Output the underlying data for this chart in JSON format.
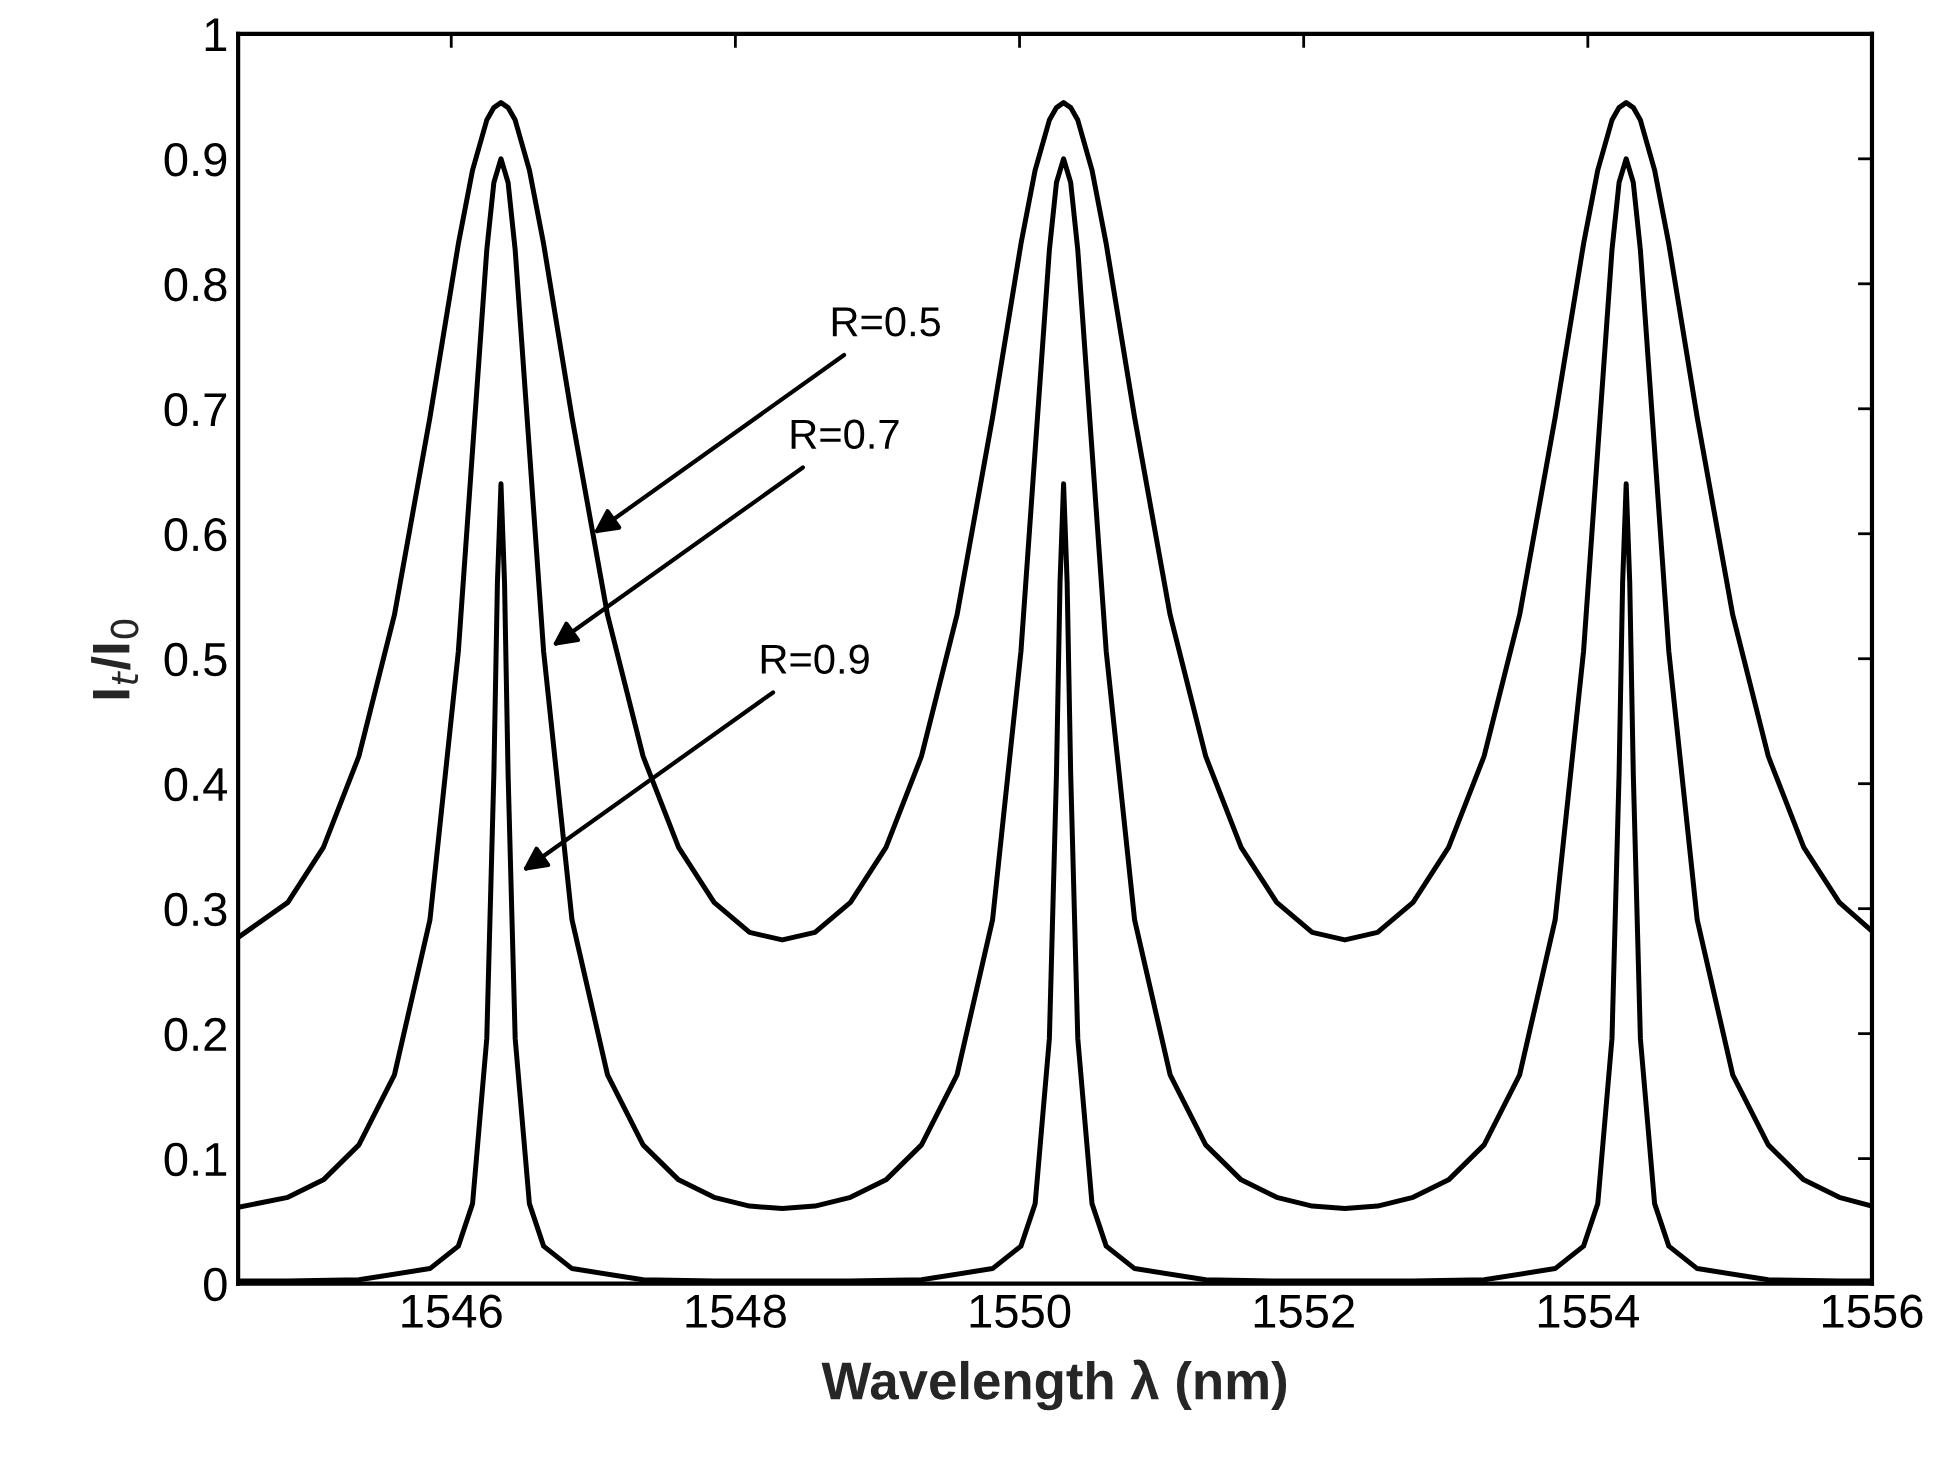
{
  "chart_data": {
    "type": "line",
    "xlabel": "Wavelength λ (nm)",
    "ylabel": "I$_{t}$/I$_{0}$",
    "xlim": [
      1544.5,
      1556
    ],
    "xticks": [
      1546,
      1548,
      1550,
      1552,
      1554,
      1556
    ],
    "ylim": [
      0,
      1
    ],
    "yticks": [
      0,
      0.1,
      0.2,
      0.3,
      0.4,
      0.5,
      0.6,
      0.7,
      0.8,
      0.9,
      1
    ],
    "grid": false,
    "marker": "none",
    "line_style": "solid",
    "series": [
      {
        "color": "#000000",
        "x": [
          1544.5,
          1544.85,
          1545.1,
          1545.35,
          1545.6,
          1545.85,
          1546.05,
          1546.15,
          1546.25,
          1546.3,
          1546.35,
          1546.4,
          1546.45,
          1546.55,
          1546.65,
          1546.85,
          1547.1,
          1547.35,
          1547.6,
          1547.85,
          1548.1,
          1548.33,
          1548.56,
          1548.81,
          1549.06,
          1549.31,
          1549.56,
          1549.81,
          1550.01,
          1550.11,
          1550.21,
          1550.26,
          1550.31,
          1550.36,
          1550.41,
          1550.51,
          1550.61,
          1550.81,
          1551.06,
          1551.31,
          1551.56,
          1551.81,
          1552.06,
          1552.29,
          1552.52,
          1552.77,
          1553.02,
          1553.27,
          1553.52,
          1553.77,
          1553.97,
          1554.07,
          1554.17,
          1554.22,
          1554.27,
          1554.32,
          1554.37,
          1554.47,
          1554.57,
          1554.77,
          1555.02,
          1555.27,
          1555.52,
          1555.77,
          1556.0
        ],
        "values": [
          0.277,
          0.305,
          0.349,
          0.422,
          0.535,
          0.693,
          0.832,
          0.891,
          0.931,
          0.941,
          0.945,
          0.941,
          0.931,
          0.891,
          0.832,
          0.693,
          0.535,
          0.422,
          0.349,
          0.305,
          0.281,
          0.275,
          0.281,
          0.305,
          0.349,
          0.422,
          0.535,
          0.693,
          0.832,
          0.891,
          0.931,
          0.941,
          0.945,
          0.941,
          0.931,
          0.891,
          0.832,
          0.693,
          0.535,
          0.422,
          0.349,
          0.305,
          0.281,
          0.275,
          0.281,
          0.305,
          0.349,
          0.422,
          0.535,
          0.693,
          0.832,
          0.891,
          0.931,
          0.941,
          0.945,
          0.941,
          0.931,
          0.891,
          0.832,
          0.693,
          0.535,
          0.422,
          0.349,
          0.305,
          0.282
        ]
      },
      {
        "color": "#000000",
        "x": [
          1544.5,
          1544.85,
          1545.1,
          1545.35,
          1545.6,
          1545.85,
          1546.05,
          1546.15,
          1546.25,
          1546.3,
          1546.35,
          1546.4,
          1546.45,
          1546.55,
          1546.65,
          1546.85,
          1547.1,
          1547.35,
          1547.6,
          1547.85,
          1548.1,
          1548.33,
          1548.56,
          1548.81,
          1549.06,
          1549.31,
          1549.56,
          1549.81,
          1550.01,
          1550.11,
          1550.21,
          1550.26,
          1550.31,
          1550.36,
          1550.41,
          1550.51,
          1550.61,
          1550.81,
          1551.06,
          1551.31,
          1551.56,
          1551.81,
          1552.06,
          1552.29,
          1552.52,
          1552.77,
          1553.02,
          1553.27,
          1553.52,
          1553.77,
          1553.97,
          1554.07,
          1554.17,
          1554.22,
          1554.27,
          1554.32,
          1554.37,
          1554.47,
          1554.57,
          1554.77,
          1555.02,
          1555.27,
          1555.52,
          1555.77,
          1556.0
        ],
        "values": [
          0.061,
          0.069,
          0.083,
          0.111,
          0.167,
          0.291,
          0.506,
          0.667,
          0.827,
          0.881,
          0.9,
          0.881,
          0.827,
          0.667,
          0.506,
          0.291,
          0.167,
          0.111,
          0.083,
          0.069,
          0.062,
          0.06,
          0.062,
          0.069,
          0.083,
          0.111,
          0.167,
          0.291,
          0.506,
          0.667,
          0.827,
          0.881,
          0.9,
          0.881,
          0.827,
          0.667,
          0.506,
          0.291,
          0.167,
          0.111,
          0.083,
          0.069,
          0.062,
          0.06,
          0.062,
          0.069,
          0.083,
          0.111,
          0.167,
          0.291,
          0.506,
          0.667,
          0.827,
          0.881,
          0.9,
          0.881,
          0.827,
          0.667,
          0.506,
          0.291,
          0.167,
          0.111,
          0.083,
          0.069,
          0.062
        ]
      },
      {
        "color": "#000000",
        "x": [
          1544.5,
          1544.85,
          1545.35,
          1545.85,
          1546.05,
          1546.15,
          1546.25,
          1546.3,
          1546.325,
          1546.35,
          1546.375,
          1546.4,
          1546.45,
          1546.55,
          1546.65,
          1546.85,
          1547.35,
          1547.85,
          1548.33,
          1548.81,
          1549.31,
          1549.81,
          1550.01,
          1550.11,
          1550.21,
          1550.26,
          1550.285,
          1550.31,
          1550.335,
          1550.36,
          1550.41,
          1550.51,
          1550.61,
          1550.81,
          1551.31,
          1551.81,
          1552.29,
          1552.77,
          1553.27,
          1553.77,
          1553.97,
          1554.07,
          1554.17,
          1554.22,
          1554.245,
          1554.27,
          1554.295,
          1554.32,
          1554.37,
          1554.47,
          1554.57,
          1554.77,
          1555.27,
          1555.77,
          1556.0
        ],
        "values": [
          0.002,
          0.002,
          0.003,
          0.012,
          0.03,
          0.064,
          0.196,
          0.408,
          0.561,
          0.64,
          0.561,
          0.408,
          0.196,
          0.064,
          0.03,
          0.012,
          0.003,
          0.002,
          0.002,
          0.002,
          0.003,
          0.012,
          0.03,
          0.064,
          0.196,
          0.408,
          0.561,
          0.64,
          0.561,
          0.408,
          0.196,
          0.064,
          0.03,
          0.012,
          0.003,
          0.002,
          0.002,
          0.002,
          0.003,
          0.012,
          0.03,
          0.064,
          0.196,
          0.408,
          0.561,
          0.64,
          0.561,
          0.408,
          0.196,
          0.064,
          0.03,
          0.012,
          0.003,
          0.002,
          0.002
        ]
      }
    ],
    "annotations": [
      {
        "text": "R=0.5",
        "x": 1547.0,
        "y": 0.6
      },
      {
        "text": "R=0.7",
        "x": 1546.71,
        "y": 0.51
      },
      {
        "text": "R=0.9",
        "x": 1546.5,
        "y": 0.33
      }
    ]
  }
}
